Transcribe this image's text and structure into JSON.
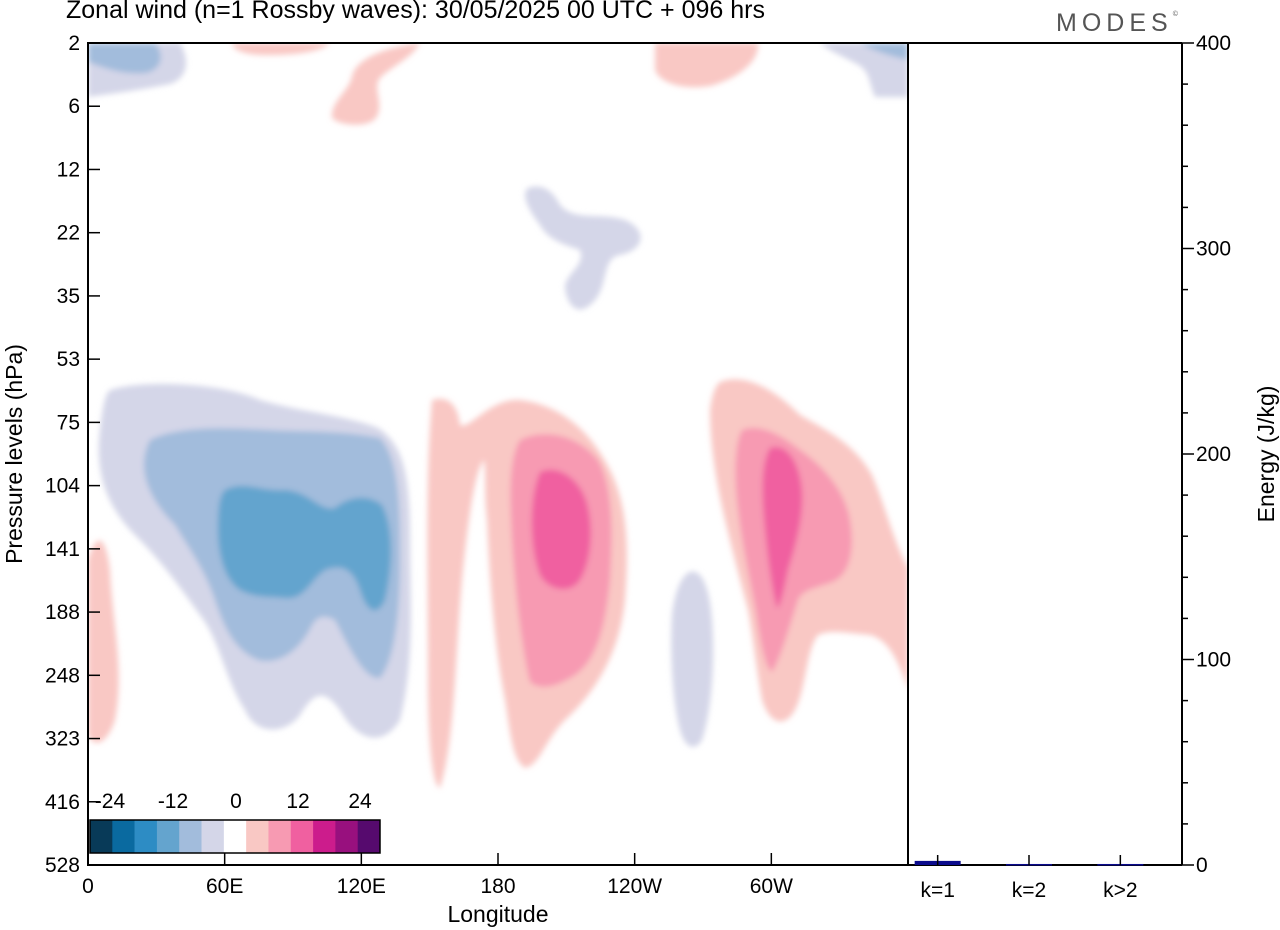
{
  "title": "Zonal wind (n=1 Rossby waves):  30/05/2025  00 UTC  + 096 hrs",
  "brand": "MODES",
  "brand_mark": "©",
  "colors": {
    "neg": [
      "#083a58",
      "#0a6aa0",
      "#2d8cc4",
      "#64a4ce",
      "#a2bcdc",
      "#d4d6e8"
    ],
    "zero": "#ffffff",
    "pos": [
      "#f9c8c4",
      "#f79ab2",
      "#f060a0",
      "#cc1c8c",
      "#98107e",
      "#560a6e"
    ],
    "bar": "#0b0b8c"
  },
  "chart_data": [
    {
      "type": "heatmap",
      "title": "Zonal wind (n=1 Rossby waves):  30/05/2025  00 UTC  + 096 hrs",
      "xlabel": "Longitude",
      "ylabel": "Pressure levels (hPa)",
      "x_ticks": [
        "0",
        "60E",
        "120E",
        "180",
        "120W",
        "60W"
      ],
      "x_tick_positions_deg": [
        0,
        60,
        120,
        180,
        240,
        300
      ],
      "x_range_deg": [
        0,
        360
      ],
      "y_ticks": [
        "2",
        "6",
        "12",
        "22",
        "35",
        "53",
        "75",
        "104",
        "141",
        "188",
        "248",
        "323",
        "416",
        "528"
      ],
      "colorbar_labels": [
        "-24",
        "-12",
        "0",
        "12",
        "24"
      ],
      "grid": false
    },
    {
      "type": "bar",
      "categories": [
        "k=1",
        "k=2",
        "k>2"
      ],
      "values": [
        2,
        0.5,
        0.5
      ],
      "ylabel": "Energy (J/kg)",
      "ylim": [
        0,
        400
      ],
      "y_ticks": [
        "0",
        "100",
        "200",
        "300",
        "400"
      ]
    }
  ]
}
